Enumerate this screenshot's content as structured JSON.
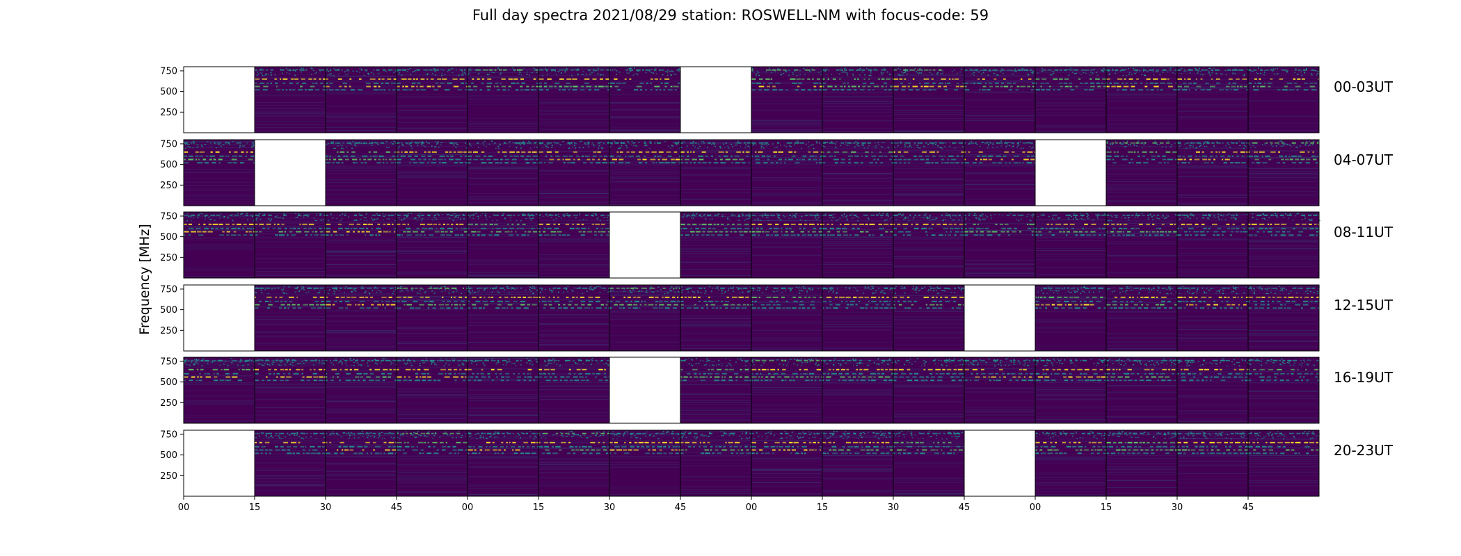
{
  "chart_data": {
    "type": "heatmap",
    "title": "Full day spectra 2021/08/29 station: ROSWELL-NM with focus-code: 59",
    "ylabel": "Frequency [MHz]",
    "xlabel": "",
    "y_ticks": [
      750,
      500,
      250
    ],
    "ylim": [
      0,
      800
    ],
    "x_ticks": [
      "00",
      "15",
      "30",
      "45",
      "00",
      "15",
      "30",
      "45",
      "00",
      "15",
      "30",
      "45",
      "00",
      "15",
      "30",
      "45"
    ],
    "colormap": "viridis",
    "colors": {
      "background": "#440154",
      "mid": "#31688e",
      "teal": "#21918c",
      "green": "#5ec962",
      "yellow": "#fde725"
    },
    "rows": [
      {
        "label": "00-03UT",
        "missing_segments": [
          0,
          7
        ]
      },
      {
        "label": "04-07UT",
        "missing_segments": [
          1,
          12
        ]
      },
      {
        "label": "08-11UT",
        "missing_segments": [
          6
        ]
      },
      {
        "label": "12-15UT",
        "missing_segments": [
          0,
          11
        ]
      },
      {
        "label": "16-19UT",
        "missing_segments": [
          6
        ]
      },
      {
        "label": "20-23UT",
        "missing_segments": [
          0,
          11
        ]
      }
    ],
    "segments_per_row": 16,
    "bright_bands_mhz": [
      {
        "freq": 760,
        "level": 0.45
      },
      {
        "freq": 650,
        "level": 0.95
      },
      {
        "freq": 600,
        "level": 0.4
      },
      {
        "freq": 560,
        "level": 0.7
      },
      {
        "freq": 520,
        "level": 0.35
      }
    ]
  }
}
